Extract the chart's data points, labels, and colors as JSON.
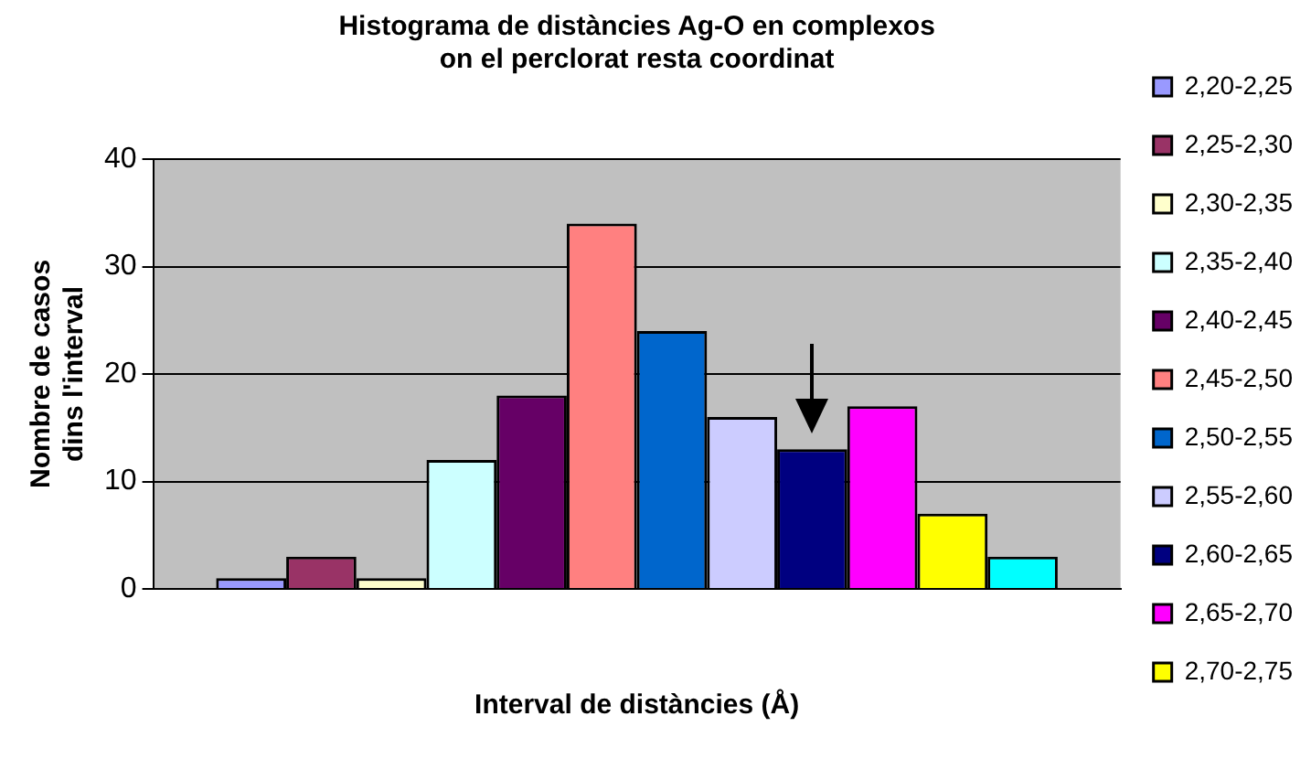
{
  "chart_data": {
    "type": "bar",
    "title": "Histograma de distàncies Ag-O en complexos\non el perclorat resta coordinat",
    "xlabel": "Interval de distàncies (Å)",
    "ylabel": "Nombre de casos\ndins l'interval",
    "categories": [
      null
    ],
    "series": [
      {
        "name": "2,20-2,25",
        "color": "#9999ff",
        "values": [
          1
        ]
      },
      {
        "name": "2,25-2,30",
        "color": "#993366",
        "values": [
          3
        ]
      },
      {
        "name": "2,30-2,35",
        "color": "#ffffcc",
        "values": [
          1
        ]
      },
      {
        "name": "2,35-2,40",
        "color": "#ccffff",
        "values": [
          12
        ]
      },
      {
        "name": "2,40-2,45",
        "color": "#660066",
        "values": [
          18
        ]
      },
      {
        "name": "2,45-2,50",
        "color": "#ff8080",
        "values": [
          34
        ]
      },
      {
        "name": "2,50-2,55",
        "color": "#0066cc",
        "values": [
          24
        ]
      },
      {
        "name": "2,55-2,60",
        "color": "#ccccff",
        "values": [
          16
        ]
      },
      {
        "name": "2,60-2,65",
        "color": "#000080",
        "values": [
          13
        ]
      },
      {
        "name": "2,65-2,70",
        "color": "#ff00ff",
        "values": [
          17
        ]
      },
      {
        "name": "2,70-2,75",
        "color": "#ffff00",
        "values": [
          7
        ]
      },
      {
        "color": "#00ffff",
        "values": [
          3
        ]
      }
    ],
    "ylim": [
      0,
      40
    ],
    "yticks": [
      0,
      10,
      20,
      30,
      40
    ],
    "grid": "y",
    "legend": "right"
  }
}
